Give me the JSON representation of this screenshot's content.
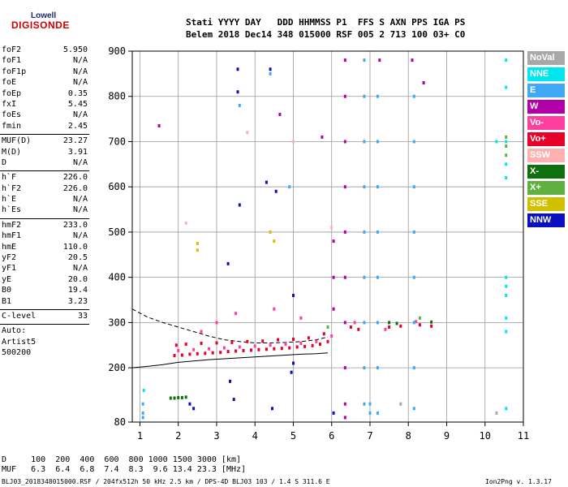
{
  "logo": {
    "top": "Lowell",
    "bottom": "DIGISONDE"
  },
  "header": {
    "line1": "Stati YYYY DAY   DDD HHMMSS P1  FFS S AXN PPS IGA PS",
    "line2": "Belem 2018 Dec14 348 015000 RSF 005 2 713 100 03+ C0"
  },
  "params": [
    {
      "name": "foF2",
      "value": "5.950"
    },
    {
      "name": "foF1",
      "value": "N/A"
    },
    {
      "name": "foF1p",
      "value": "N/A"
    },
    {
      "name": "foE",
      "value": "N/A"
    },
    {
      "name": "foEp",
      "value": "0.35"
    },
    {
      "name": "fxI",
      "value": "5.45"
    },
    {
      "name": "foEs",
      "value": "N/A"
    },
    {
      "name": "fmin",
      "value": "2.45"
    },
    {
      "name": "MUF(D)",
      "value": "23.27"
    },
    {
      "name": "M(D)",
      "value": "3.91"
    },
    {
      "name": "D",
      "value": "N/A"
    },
    {
      "name": "h`F",
      "value": "226.0"
    },
    {
      "name": "h`F2",
      "value": "226.0"
    },
    {
      "name": "h`E",
      "value": "N/A"
    },
    {
      "name": "h`Es",
      "value": "N/A"
    },
    {
      "name": "hmF2",
      "value": "233.0"
    },
    {
      "name": "hmF1",
      "value": "N/A"
    },
    {
      "name": "hmE",
      "value": "110.0"
    },
    {
      "name": "yF2",
      "value": "20.5"
    },
    {
      "name": "yF1",
      "value": "N/A"
    },
    {
      "name": "yE",
      "value": "20.0"
    },
    {
      "name": "B0",
      "value": "19.4"
    },
    {
      "name": "B1",
      "value": "3.23"
    },
    {
      "name": "C-level",
      "value": "33"
    }
  ],
  "auto": {
    "line1": "Auto:",
    "line2": "Artist5",
    "line3": "500200"
  },
  "legend": [
    {
      "label": "NoVal",
      "color": "#a8a8a8"
    },
    {
      "label": "NNE",
      "color": "#00e5ee"
    },
    {
      "label": "E",
      "color": "#3fa9f5"
    },
    {
      "label": "W",
      "color": "#b000a8"
    },
    {
      "label": "Vo-",
      "color": "#ff3fa0"
    },
    {
      "label": "Vo+",
      "color": "#e8002a"
    },
    {
      "label": "SSW",
      "color": "#ffb0b0"
    },
    {
      "label": "X-",
      "color": "#107010"
    },
    {
      "label": "X+",
      "color": "#60b040"
    },
    {
      "label": "SSE",
      "color": "#d0c000"
    },
    {
      "label": "NNW",
      "color": "#0a10c0"
    }
  ],
  "footer": {
    "dline": "D     100  200  400  600  800 1000 1500 3000 [km]",
    "mufline": "MUF   6.3  6.4  6.8  7.4  8.3  9.6 13.4 23.3 [MHz]",
    "fileinfo": "BLJ03_2018348015000.RSF / 204fx512h 50 kHz 2.5 km / DPS-4D BLJ03 103 / 1.4 S 311.6 E",
    "version": "Ion2Png v. 1.3.17"
  },
  "chart_data": {
    "type": "scatter",
    "title": "",
    "xlabel": "",
    "ylabel": "",
    "xlim": [
      0.8,
      11
    ],
    "ylim": [
      80,
      900
    ],
    "xticks": [
      1,
      2,
      3,
      4,
      5,
      6,
      7,
      8,
      9,
      10,
      11
    ],
    "yticks": [
      80,
      200,
      300,
      400,
      500,
      600,
      700,
      800,
      900
    ],
    "grid": true,
    "series": [
      {
        "name": "Vo+",
        "points": [
          [
            1.9,
            227
          ],
          [
            2.1,
            228
          ],
          [
            2.3,
            230
          ],
          [
            2.5,
            231
          ],
          [
            2.7,
            232
          ],
          [
            2.9,
            233
          ],
          [
            3.1,
            234
          ],
          [
            3.3,
            236
          ],
          [
            3.5,
            237
          ],
          [
            3.7,
            238
          ],
          [
            3.9,
            239
          ],
          [
            4.1,
            240
          ],
          [
            4.3,
            241
          ],
          [
            4.5,
            242
          ],
          [
            4.7,
            243
          ],
          [
            4.9,
            244
          ],
          [
            5.1,
            246
          ],
          [
            5.3,
            247
          ],
          [
            5.5,
            249
          ],
          [
            5.7,
            252
          ],
          [
            5.9,
            258
          ],
          [
            6.5,
            290
          ],
          [
            6.7,
            285
          ],
          [
            7.5,
            290
          ],
          [
            7.8,
            292
          ],
          [
            8.3,
            295
          ],
          [
            8.6,
            292
          ],
          [
            1.95,
            250
          ],
          [
            2.2,
            252
          ],
          [
            2.6,
            254
          ],
          [
            3.0,
            255
          ],
          [
            3.4,
            256
          ],
          [
            3.8,
            258
          ],
          [
            4.2,
            259
          ],
          [
            4.6,
            262
          ],
          [
            5.0,
            263
          ],
          [
            5.4,
            266
          ],
          [
            5.8,
            275
          ]
        ]
      },
      {
        "name": "Vo-",
        "points": [
          [
            2.0,
            238
          ],
          [
            2.4,
            240
          ],
          [
            2.8,
            242
          ],
          [
            3.2,
            244
          ],
          [
            3.6,
            246
          ],
          [
            4.0,
            248
          ],
          [
            4.4,
            250
          ],
          [
            4.8,
            252
          ],
          [
            5.2,
            254
          ],
          [
            5.6,
            258
          ],
          [
            6.0,
            270
          ],
          [
            6.6,
            300
          ],
          [
            7.4,
            285
          ],
          [
            8.2,
            302
          ],
          [
            3.5,
            320
          ],
          [
            4.5,
            330
          ],
          [
            5.2,
            310
          ],
          [
            3.0,
            300
          ],
          [
            2.6,
            280
          ]
        ]
      },
      {
        "name": "W",
        "points": [
          [
            6.35,
            880
          ],
          [
            6.35,
            800
          ],
          [
            6.35,
            700
          ],
          [
            6.35,
            600
          ],
          [
            6.35,
            500
          ],
          [
            6.35,
            400
          ],
          [
            6.35,
            300
          ],
          [
            6.35,
            200
          ],
          [
            6.35,
            120
          ],
          [
            6.35,
            90
          ],
          [
            6.05,
            480
          ],
          [
            6.05,
            400
          ],
          [
            6.05,
            330
          ],
          [
            4.65,
            760
          ],
          [
            5.75,
            710
          ],
          [
            1.5,
            735
          ],
          [
            8.1,
            880
          ],
          [
            8.4,
            830
          ],
          [
            7.25,
            880
          ]
        ]
      },
      {
        "name": "E",
        "points": [
          [
            6.85,
            880
          ],
          [
            6.85,
            800
          ],
          [
            6.85,
            700
          ],
          [
            6.85,
            600
          ],
          [
            6.85,
            500
          ],
          [
            6.85,
            400
          ],
          [
            6.85,
            300
          ],
          [
            6.85,
            200
          ],
          [
            6.85,
            120
          ],
          [
            7.2,
            800
          ],
          [
            7.2,
            700
          ],
          [
            7.2,
            600
          ],
          [
            7.2,
            500
          ],
          [
            7.2,
            400
          ],
          [
            7.2,
            300
          ],
          [
            7.2,
            200
          ],
          [
            7.2,
            100
          ],
          [
            8.15,
            800
          ],
          [
            8.15,
            700
          ],
          [
            8.15,
            600
          ],
          [
            8.15,
            500
          ],
          [
            8.15,
            400
          ],
          [
            8.15,
            300
          ],
          [
            8.15,
            200
          ],
          [
            8.15,
            110
          ],
          [
            1.08,
            120
          ],
          [
            1.08,
            100
          ],
          [
            1.08,
            90
          ],
          [
            7.0,
            120
          ],
          [
            7.0,
            100
          ],
          [
            4.4,
            850
          ],
          [
            3.6,
            780
          ],
          [
            4.9,
            600
          ]
        ]
      },
      {
        "name": "NNE",
        "points": [
          [
            10.55,
            880
          ],
          [
            10.55,
            820
          ],
          [
            10.55,
            700
          ],
          [
            10.55,
            650
          ],
          [
            10.55,
            620
          ],
          [
            10.55,
            400
          ],
          [
            10.55,
            380
          ],
          [
            10.55,
            360
          ],
          [
            10.55,
            310
          ],
          [
            10.55,
            280
          ],
          [
            10.55,
            110
          ],
          [
            1.1,
            150
          ],
          [
            10.3,
            700
          ]
        ]
      },
      {
        "name": "NNW",
        "points": [
          [
            3.55,
            860
          ],
          [
            3.55,
            810
          ],
          [
            4.4,
            860
          ],
          [
            4.3,
            610
          ],
          [
            4.55,
            590
          ],
          [
            3.6,
            560
          ],
          [
            3.3,
            430
          ],
          [
            5.0,
            360
          ],
          [
            4.95,
            190
          ],
          [
            3.35,
            170
          ],
          [
            3.45,
            130
          ],
          [
            2.3,
            120
          ],
          [
            2.4,
            110
          ],
          [
            4.45,
            110
          ],
          [
            6.05,
            100
          ],
          [
            5.0,
            210
          ]
        ]
      },
      {
        "name": "X-",
        "points": [
          [
            1.8,
            133
          ],
          [
            1.9,
            133
          ],
          [
            2.0,
            134
          ],
          [
            2.1,
            134
          ],
          [
            2.2,
            135
          ],
          [
            7.5,
            300
          ],
          [
            7.7,
            298
          ],
          [
            8.6,
            301
          ]
        ]
      },
      {
        "name": "X+",
        "points": [
          [
            10.55,
            710
          ],
          [
            10.55,
            690
          ],
          [
            10.55,
            670
          ],
          [
            5.9,
            290
          ],
          [
            8.3,
            310
          ]
        ]
      },
      {
        "name": "SSE",
        "points": [
          [
            2.5,
            475
          ],
          [
            2.5,
            460
          ],
          [
            4.5,
            480
          ],
          [
            4.4,
            500
          ]
        ]
      },
      {
        "name": "SSW",
        "points": [
          [
            3.8,
            720
          ],
          [
            5.0,
            700
          ],
          [
            2.2,
            520
          ],
          [
            6.0,
            510
          ]
        ]
      },
      {
        "name": "NoVal",
        "points": [
          [
            10.3,
            100
          ],
          [
            7.8,
            120
          ]
        ]
      }
    ],
    "curves": [
      {
        "name": "virtual-height-trace",
        "style": "dashed",
        "points": [
          [
            0.8,
            330
          ],
          [
            1.2,
            312
          ],
          [
            1.6,
            300
          ],
          [
            2.0,
            290
          ],
          [
            2.4,
            280
          ],
          [
            2.8,
            270
          ],
          [
            3.2,
            262
          ],
          [
            3.6,
            258
          ],
          [
            4.0,
            255
          ],
          [
            4.4,
            255
          ],
          [
            4.8,
            256
          ],
          [
            5.2,
            258
          ],
          [
            5.6,
            262
          ],
          [
            5.9,
            268
          ]
        ]
      },
      {
        "name": "true-height-profile",
        "style": "solid",
        "points": [
          [
            0.8,
            200
          ],
          [
            1.2,
            203
          ],
          [
            1.6,
            207
          ],
          [
            2.0,
            212
          ],
          [
            2.4,
            215
          ],
          [
            2.8,
            218
          ],
          [
            3.2,
            220
          ],
          [
            3.6,
            222
          ],
          [
            4.0,
            224
          ],
          [
            4.4,
            226
          ],
          [
            4.8,
            228
          ],
          [
            5.2,
            230
          ],
          [
            5.6,
            231
          ],
          [
            5.9,
            233
          ]
        ]
      }
    ]
  }
}
